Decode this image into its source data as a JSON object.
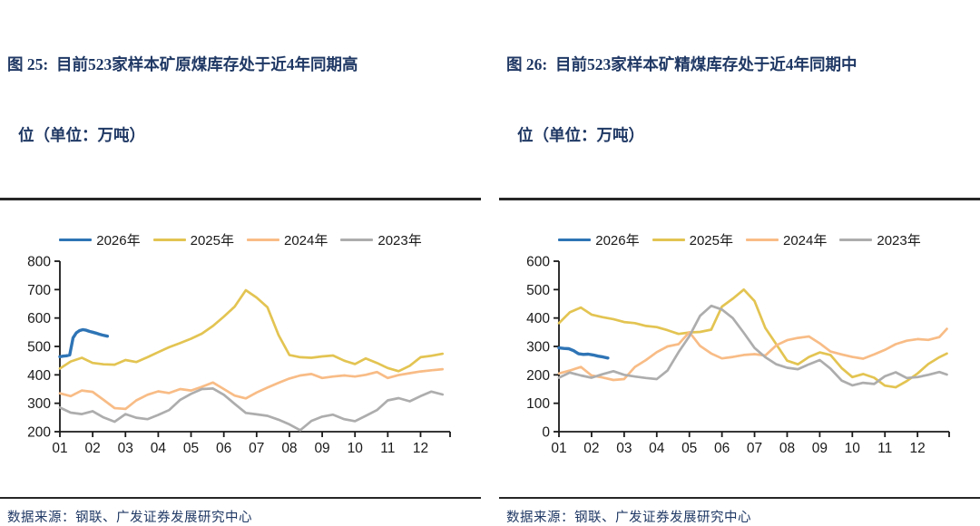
{
  "page": {
    "background": "#ffffff"
  },
  "colors": {
    "title_text": "#1F3864",
    "source_text": "#1F3864",
    "rule": "#262626",
    "axis": "#1a1a1a",
    "tick_label": "#1a1a1a",
    "legend_label": "#1a1a1a",
    "series_2026": "#2E74B5",
    "series_2025": "#E3C452",
    "series_2024": "#F8BC86",
    "series_2023": "#ADADAD"
  },
  "figures": [
    {
      "title_lines": [
        "图 25:  目前523家样本矿原煤库存处于近4年同期高",
        "位（单位：万吨）"
      ],
      "source": "数据来源：钢联、广发证券发展研究中心"
    },
    {
      "title_lines": [
        "图 26:  目前523家样本矿精煤库存处于近4年同期中",
        "位（单位：万吨）"
      ],
      "source": "数据来源：钢联、广发证券发展研究中心"
    }
  ],
  "chart_data": [
    {
      "type": "line",
      "title": "图 25: 目前523家样本矿原煤库存处于近4年同期高位（单位：万吨）",
      "unit": "万吨",
      "xlabel": "",
      "ylabel": "",
      "grid": false,
      "legend_position": "top",
      "ylim": [
        200,
        800
      ],
      "yticks": [
        200,
        300,
        400,
        500,
        600,
        700,
        800
      ],
      "xlim": [
        1,
        12.9
      ],
      "xtick_months": [
        1,
        2,
        3,
        4,
        5,
        6,
        7,
        8,
        9,
        10,
        11,
        12
      ],
      "xticklabels": [
        "01",
        "02",
        "03",
        "04",
        "05",
        "06",
        "07",
        "08",
        "09",
        "10",
        "11",
        "12"
      ],
      "series": [
        {
          "name": "2026年",
          "color": "#2E74B5",
          "width": 3.4,
          "x": [
            1,
            1.1,
            1.2,
            1.3,
            1.4,
            1.5,
            1.6,
            1.7,
            1.8,
            1.9,
            2,
            2.1,
            2.2,
            2.3,
            2.45
          ],
          "y": [
            464,
            466,
            467,
            470,
            530,
            548,
            556,
            559,
            557,
            553,
            550,
            547,
            543,
            540,
            536
          ]
        },
        {
          "name": "2025年",
          "color": "#E3C452",
          "width": 2.7,
          "x": [
            1,
            1.33,
            1.67,
            2,
            2.33,
            2.67,
            3,
            3.33,
            3.67,
            4,
            4.33,
            4.67,
            5,
            5.33,
            5.67,
            6,
            6.33,
            6.67,
            7,
            7.33,
            7.67,
            8,
            8.33,
            8.67,
            9,
            9.33,
            9.67,
            10,
            10.33,
            10.67,
            11,
            11.33,
            11.67,
            12,
            12.33,
            12.67
          ],
          "y": [
            422,
            447,
            460,
            442,
            437,
            436,
            452,
            445,
            462,
            480,
            497,
            512,
            527,
            545,
            572,
            605,
            640,
            698,
            672,
            638,
            540,
            470,
            462,
            460,
            465,
            468,
            450,
            438,
            458,
            442,
            424,
            413,
            432,
            462,
            467,
            474
          ]
        },
        {
          "name": "2024年",
          "color": "#F8BC86",
          "width": 2.7,
          "x": [
            1,
            1.33,
            1.67,
            2,
            2.33,
            2.67,
            3,
            3.33,
            3.67,
            4,
            4.33,
            4.67,
            5,
            5.33,
            5.67,
            6,
            6.33,
            6.67,
            7,
            7.33,
            7.67,
            8,
            8.33,
            8.67,
            9,
            9.33,
            9.67,
            10,
            10.33,
            10.67,
            11,
            11.33,
            11.67,
            12,
            12.33,
            12.67
          ],
          "y": [
            335,
            325,
            345,
            340,
            312,
            283,
            280,
            310,
            330,
            342,
            336,
            350,
            345,
            358,
            373,
            350,
            327,
            317,
            338,
            355,
            372,
            387,
            398,
            403,
            389,
            394,
            398,
            394,
            400,
            410,
            389,
            399,
            406,
            412,
            416,
            420
          ]
        },
        {
          "name": "2023年",
          "color": "#ADADAD",
          "width": 2.7,
          "x": [
            1,
            1.33,
            1.67,
            2,
            2.33,
            2.67,
            3,
            3.33,
            3.67,
            4,
            4.33,
            4.67,
            5,
            5.33,
            5.67,
            6,
            6.33,
            6.67,
            7,
            7.33,
            7.67,
            8,
            8.33,
            8.67,
            9,
            9.33,
            9.67,
            10,
            10.33,
            10.67,
            11,
            11.33,
            11.67,
            12,
            12.33,
            12.67
          ],
          "y": [
            285,
            267,
            262,
            272,
            250,
            235,
            262,
            249,
            244,
            259,
            276,
            312,
            333,
            350,
            352,
            330,
            298,
            266,
            261,
            256,
            242,
            226,
            205,
            238,
            253,
            260,
            244,
            237,
            256,
            276,
            310,
            318,
            307,
            325,
            341,
            331
          ]
        }
      ]
    },
    {
      "type": "line",
      "title": "图 26: 目前523家样本矿精煤库存处于近4年同期中位（单位：万吨）",
      "unit": "万吨",
      "xlabel": "",
      "ylabel": "",
      "grid": false,
      "legend_position": "top",
      "ylim": [
        0,
        600
      ],
      "yticks": [
        0,
        100,
        200,
        300,
        400,
        500,
        600
      ],
      "xlim": [
        1,
        12.97
      ],
      "xtick_months": [
        1,
        2,
        3,
        4,
        5,
        6,
        7,
        8,
        9,
        10,
        11,
        12
      ],
      "xticklabels": [
        "01",
        "02",
        "03",
        "04",
        "05",
        "06",
        "07",
        "08",
        "09",
        "10",
        "11",
        "12"
      ],
      "series": [
        {
          "name": "2026年",
          "color": "#2E74B5",
          "width": 3.4,
          "x": [
            1,
            1.15,
            1.3,
            1.45,
            1.6,
            1.75,
            1.9,
            2.05,
            2.2,
            2.35,
            2.5
          ],
          "y": [
            295,
            293,
            292,
            285,
            274,
            272,
            273,
            270,
            266,
            263,
            259
          ]
        },
        {
          "name": "2025年",
          "color": "#E3C452",
          "width": 2.7,
          "x": [
            1,
            1.33,
            1.67,
            2,
            2.33,
            2.67,
            3,
            3.33,
            3.67,
            4,
            4.33,
            4.67,
            5,
            5.33,
            5.67,
            6,
            6.33,
            6.67,
            7,
            7.33,
            7.67,
            8,
            8.33,
            8.67,
            9,
            9.33,
            9.67,
            10,
            10.33,
            10.67,
            11,
            11.33,
            11.67,
            12,
            12.33,
            12.67,
            12.9
          ],
          "y": [
            382,
            420,
            437,
            412,
            403,
            396,
            386,
            382,
            372,
            368,
            357,
            344,
            349,
            351,
            359,
            440,
            468,
            500,
            460,
            365,
            307,
            250,
            237,
            263,
            279,
            270,
            224,
            192,
            203,
            190,
            162,
            156,
            178,
            205,
            238,
            262,
            275
          ]
        },
        {
          "name": "2024年",
          "color": "#F8BC86",
          "width": 2.7,
          "x": [
            1,
            1.33,
            1.67,
            2,
            2.33,
            2.67,
            3,
            3.33,
            3.67,
            4,
            4.33,
            4.67,
            5,
            5.33,
            5.67,
            6,
            6.33,
            6.67,
            7,
            7.33,
            7.67,
            8,
            8.33,
            8.67,
            9,
            9.33,
            9.67,
            10,
            10.33,
            10.67,
            11,
            11.33,
            11.67,
            12,
            12.33,
            12.67,
            12.9
          ],
          "y": [
            205,
            215,
            228,
            198,
            191,
            182,
            185,
            228,
            252,
            280,
            300,
            308,
            350,
            302,
            275,
            258,
            263,
            270,
            273,
            268,
            304,
            322,
            330,
            335,
            311,
            282,
            272,
            263,
            257,
            272,
            288,
            308,
            320,
            326,
            323,
            333,
            362
          ]
        },
        {
          "name": "2023年",
          "color": "#ADADAD",
          "width": 2.7,
          "x": [
            1,
            1.33,
            1.67,
            2,
            2.33,
            2.67,
            3,
            3.33,
            3.67,
            4,
            4.33,
            4.67,
            5,
            5.33,
            5.67,
            6,
            6.33,
            6.67,
            7,
            7.33,
            7.67,
            8,
            8.33,
            8.67,
            9,
            9.33,
            9.67,
            10,
            10.33,
            10.67,
            11,
            11.33,
            11.67,
            12,
            12.33,
            12.67,
            12.9
          ],
          "y": [
            190,
            208,
            198,
            190,
            202,
            213,
            200,
            194,
            189,
            185,
            215,
            280,
            336,
            408,
            443,
            430,
            400,
            348,
            295,
            262,
            237,
            225,
            220,
            237,
            252,
            222,
            180,
            163,
            172,
            168,
            195,
            209,
            189,
            192,
            200,
            210,
            201
          ]
        }
      ]
    }
  ]
}
